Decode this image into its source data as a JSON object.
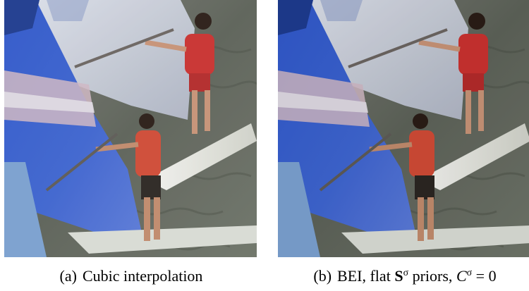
{
  "figures": [
    {
      "label": "(a)",
      "caption": "Cubic interpolation",
      "image": "windsurfers-photo"
    },
    {
      "label": "(b)",
      "caption_parts": {
        "text1": "BEI, flat ",
        "bold_symbol": "S",
        "sup1": "σ",
        "text2": " priors, ",
        "italic_symbol": "C",
        "sup2": "σ",
        "text3": " = 0"
      },
      "image": "windsurfers-photo"
    }
  ]
}
